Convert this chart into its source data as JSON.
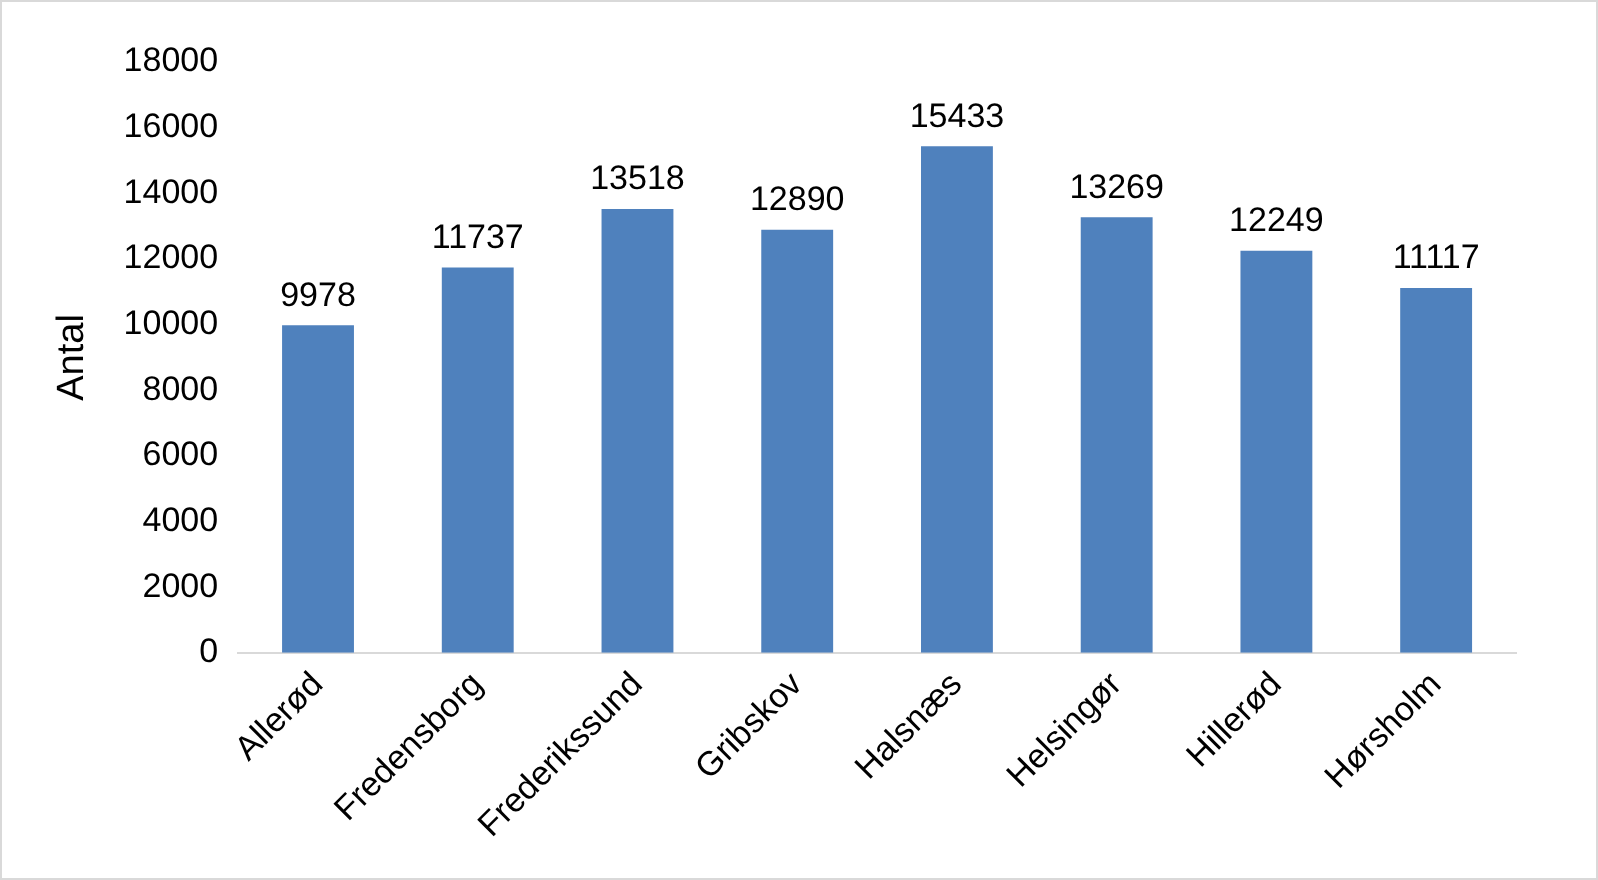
{
  "chart_data": {
    "type": "bar",
    "ylabel": "Antal",
    "categories": [
      "Allerød",
      "Fredensborg",
      "Frederikssund",
      "Gribskov",
      "Halsnæs",
      "Helsingør",
      "Hillerød",
      "Hørsholm"
    ],
    "values": [
      9978,
      11737,
      13518,
      12890,
      15433,
      13269,
      12249,
      11117
    ],
    "color": "#4f81bd",
    "ylim": [
      0,
      18000
    ],
    "yticks": [
      0,
      2000,
      4000,
      6000,
      8000,
      10000,
      12000,
      14000,
      16000,
      18000
    ],
    "grid": false,
    "legend": false,
    "data_labels": true
  }
}
